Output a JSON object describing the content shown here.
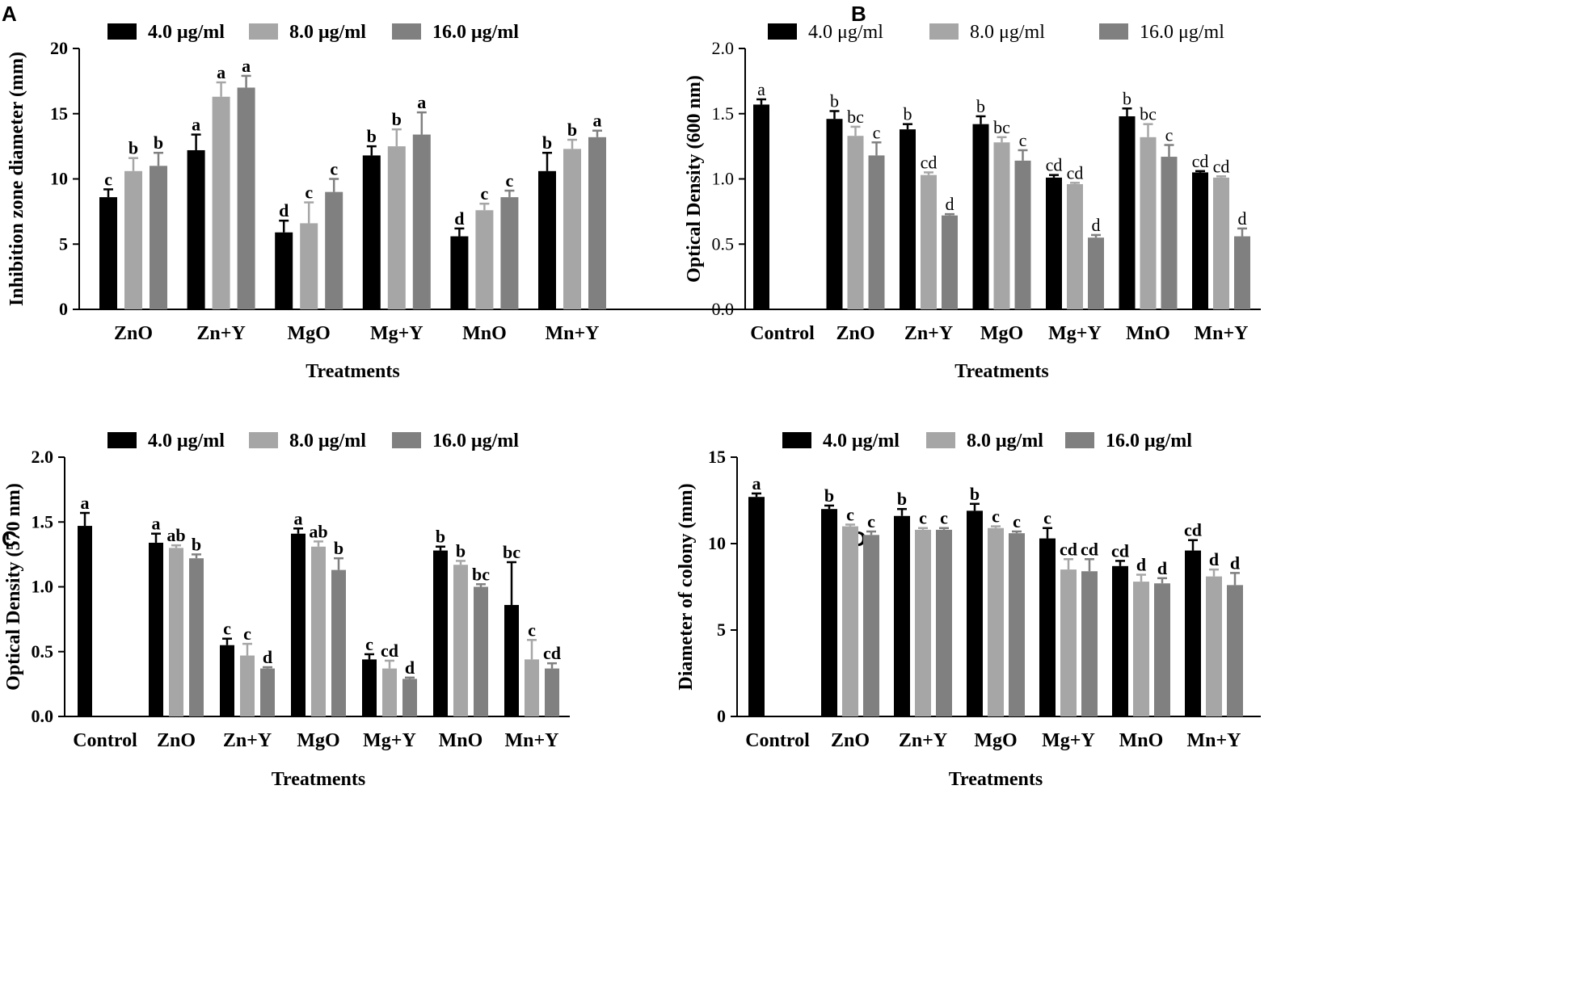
{
  "colors": {
    "s1": "#000000",
    "s2": "#a6a6a6",
    "s3": "#808080"
  },
  "chart_data": [
    {
      "panel": "A",
      "type": "bar",
      "title": "",
      "xlabel": "Treatments",
      "ylabel": "Inhibition zone diameter (mm)",
      "ylim": [
        0,
        20
      ],
      "yticks": [
        0,
        5,
        10,
        15,
        20
      ],
      "ytick_labels": [
        "0",
        "5",
        "10",
        "15",
        "20"
      ],
      "bold_labels": true,
      "legend": [
        "4.0 μg/ml",
        "8.0 μg/ml",
        "16.0 μg/ml"
      ],
      "categories": [
        "ZnO",
        "Zn+Y",
        "MgO",
        "Mg+Y",
        "MnO",
        "Mn+Y"
      ],
      "series": [
        {
          "name": "4.0 μg/ml",
          "values": [
            8.6,
            12.2,
            5.9,
            11.8,
            5.6,
            10.6
          ],
          "errors": [
            0.6,
            1.2,
            0.9,
            0.7,
            0.6,
            1.4
          ],
          "letters": [
            "c",
            "a",
            "d",
            "b",
            "d",
            "b"
          ]
        },
        {
          "name": "8.0 μg/ml",
          "values": [
            10.6,
            16.3,
            6.6,
            12.5,
            7.6,
            12.3
          ],
          "errors": [
            1.0,
            1.1,
            1.6,
            1.3,
            0.5,
            0.7
          ],
          "letters": [
            "b",
            "a",
            "c",
            "b",
            "c",
            "b"
          ]
        },
        {
          "name": "16.0 μg/ml",
          "values": [
            11.0,
            17.0,
            9.0,
            13.4,
            8.6,
            13.2
          ],
          "errors": [
            1.0,
            0.9,
            1.0,
            1.7,
            0.5,
            0.5
          ],
          "letters": [
            "b",
            "a",
            "c",
            "a",
            "c",
            "a"
          ]
        }
      ]
    },
    {
      "panel": "B",
      "type": "bar",
      "title": "",
      "xlabel": "Treatments",
      "ylabel": "Optical Density (600 nm)",
      "ylim": [
        0,
        2
      ],
      "yticks": [
        0,
        0.5,
        1,
        1.5,
        2
      ],
      "ytick_labels": [
        "0.0",
        "0.5",
        "1.0",
        "1.5",
        "2.0"
      ],
      "bold_labels": false,
      "legend": [
        "4.0 μg/ml",
        "8.0 μg/ml",
        "16.0 μg/ml"
      ],
      "categories": [
        "Control",
        "ZnO",
        "Zn+Y",
        "MgO",
        "Mg+Y",
        "MnO",
        "Mn+Y"
      ],
      "series": [
        {
          "name": "4.0 μg/ml",
          "values": [
            1.57,
            1.46,
            1.38,
            1.42,
            1.01,
            1.48,
            1.05
          ],
          "errors": [
            0.04,
            0.06,
            0.04,
            0.06,
            0.02,
            0.06,
            0.01
          ],
          "letters": [
            "a",
            "b",
            "b",
            "b",
            "cd",
            "b",
            "cd"
          ]
        },
        {
          "name": "8.0 μg/ml",
          "values": [
            null,
            1.33,
            1.03,
            1.28,
            0.96,
            1.32,
            1.01
          ],
          "errors": [
            null,
            0.07,
            0.02,
            0.04,
            0.01,
            0.1,
            0.01
          ],
          "letters": [
            "",
            "bc",
            "cd",
            "bc",
            "cd",
            "bc",
            "cd"
          ]
        },
        {
          "name": "16.0 μg/ml",
          "values": [
            null,
            1.18,
            0.72,
            1.14,
            0.55,
            1.17,
            0.56
          ],
          "errors": [
            null,
            0.1,
            0.01,
            0.08,
            0.02,
            0.09,
            0.06
          ],
          "letters": [
            "",
            "c",
            "d",
            "c",
            "d",
            "c",
            "d"
          ]
        }
      ]
    },
    {
      "panel": "C",
      "type": "bar",
      "title": "",
      "xlabel": "Treatments",
      "ylabel": "Optical Density (570 nm)",
      "ylim": [
        0,
        2
      ],
      "yticks": [
        0,
        0.5,
        1,
        1.5,
        2
      ],
      "ytick_labels": [
        "0.0",
        "0.5",
        "1.0",
        "1.5",
        "2.0"
      ],
      "bold_labels": true,
      "legend": [
        "4.0 μg/ml",
        "8.0 μg/ml",
        "16.0 μg/ml"
      ],
      "categories": [
        "Control",
        "ZnO",
        "Zn+Y",
        "MgO",
        "Mg+Y",
        "MnO",
        "Mn+Y"
      ],
      "series": [
        {
          "name": "4.0 μg/ml",
          "values": [
            1.47,
            1.34,
            0.55,
            1.41,
            0.44,
            1.28,
            0.86
          ],
          "errors": [
            0.1,
            0.07,
            0.05,
            0.04,
            0.04,
            0.03,
            0.33
          ],
          "letters": [
            "a",
            "a",
            "c",
            "a",
            "c",
            "b",
            "bc"
          ]
        },
        {
          "name": "8.0 μg/ml",
          "values": [
            null,
            1.3,
            0.47,
            1.31,
            0.37,
            1.17,
            0.44
          ],
          "errors": [
            null,
            0.02,
            0.09,
            0.04,
            0.06,
            0.03,
            0.15
          ],
          "letters": [
            "",
            "ab",
            "c",
            "ab",
            "cd",
            "b",
            "c"
          ]
        },
        {
          "name": "16.0 μg/ml",
          "values": [
            null,
            1.22,
            0.37,
            1.13,
            0.29,
            1.0,
            0.37
          ],
          "errors": [
            null,
            0.03,
            0.01,
            0.09,
            0.01,
            0.02,
            0.04
          ],
          "letters": [
            "",
            "b",
            "d",
            "b",
            "d",
            "bc",
            "cd"
          ]
        }
      ]
    },
    {
      "panel": "D",
      "type": "bar",
      "title": "",
      "xlabel": "Treatments",
      "ylabel": "Diameter of colony (mm)",
      "ylim": [
        0,
        15
      ],
      "yticks": [
        0,
        5,
        10,
        15
      ],
      "ytick_labels": [
        "0",
        "5",
        "10",
        "15"
      ],
      "bold_labels": true,
      "legend": [
        "4.0 μg/ml",
        "8.0 μg/ml",
        "16.0 μg/ml"
      ],
      "categories": [
        "Control",
        "ZnO",
        "Zn+Y",
        "MgO",
        "Mg+Y",
        "MnO",
        "Mn+Y"
      ],
      "series": [
        {
          "name": "4.0 μg/ml",
          "values": [
            12.7,
            12.0,
            11.6,
            11.9,
            10.3,
            8.7,
            9.6
          ],
          "errors": [
            0.2,
            0.2,
            0.4,
            0.4,
            0.6,
            0.3,
            0.6
          ],
          "letters": [
            "a",
            "b",
            "b",
            "b",
            "c",
            "cd",
            "cd"
          ]
        },
        {
          "name": "8.0 μg/ml",
          "values": [
            null,
            11.0,
            10.8,
            10.9,
            8.5,
            7.8,
            8.1
          ],
          "errors": [
            null,
            0.1,
            0.1,
            0.1,
            0.6,
            0.4,
            0.4
          ],
          "letters": [
            "",
            "c",
            "c",
            "c",
            "cd",
            "d",
            "d"
          ]
        },
        {
          "name": "16.0 μg/ml",
          "values": [
            null,
            10.5,
            10.8,
            10.6,
            8.4,
            7.7,
            7.6
          ],
          "errors": [
            null,
            0.2,
            0.1,
            0.1,
            0.7,
            0.3,
            0.7
          ],
          "letters": [
            "",
            "c",
            "c",
            "c",
            "cd",
            "d",
            "d"
          ]
        }
      ]
    }
  ]
}
